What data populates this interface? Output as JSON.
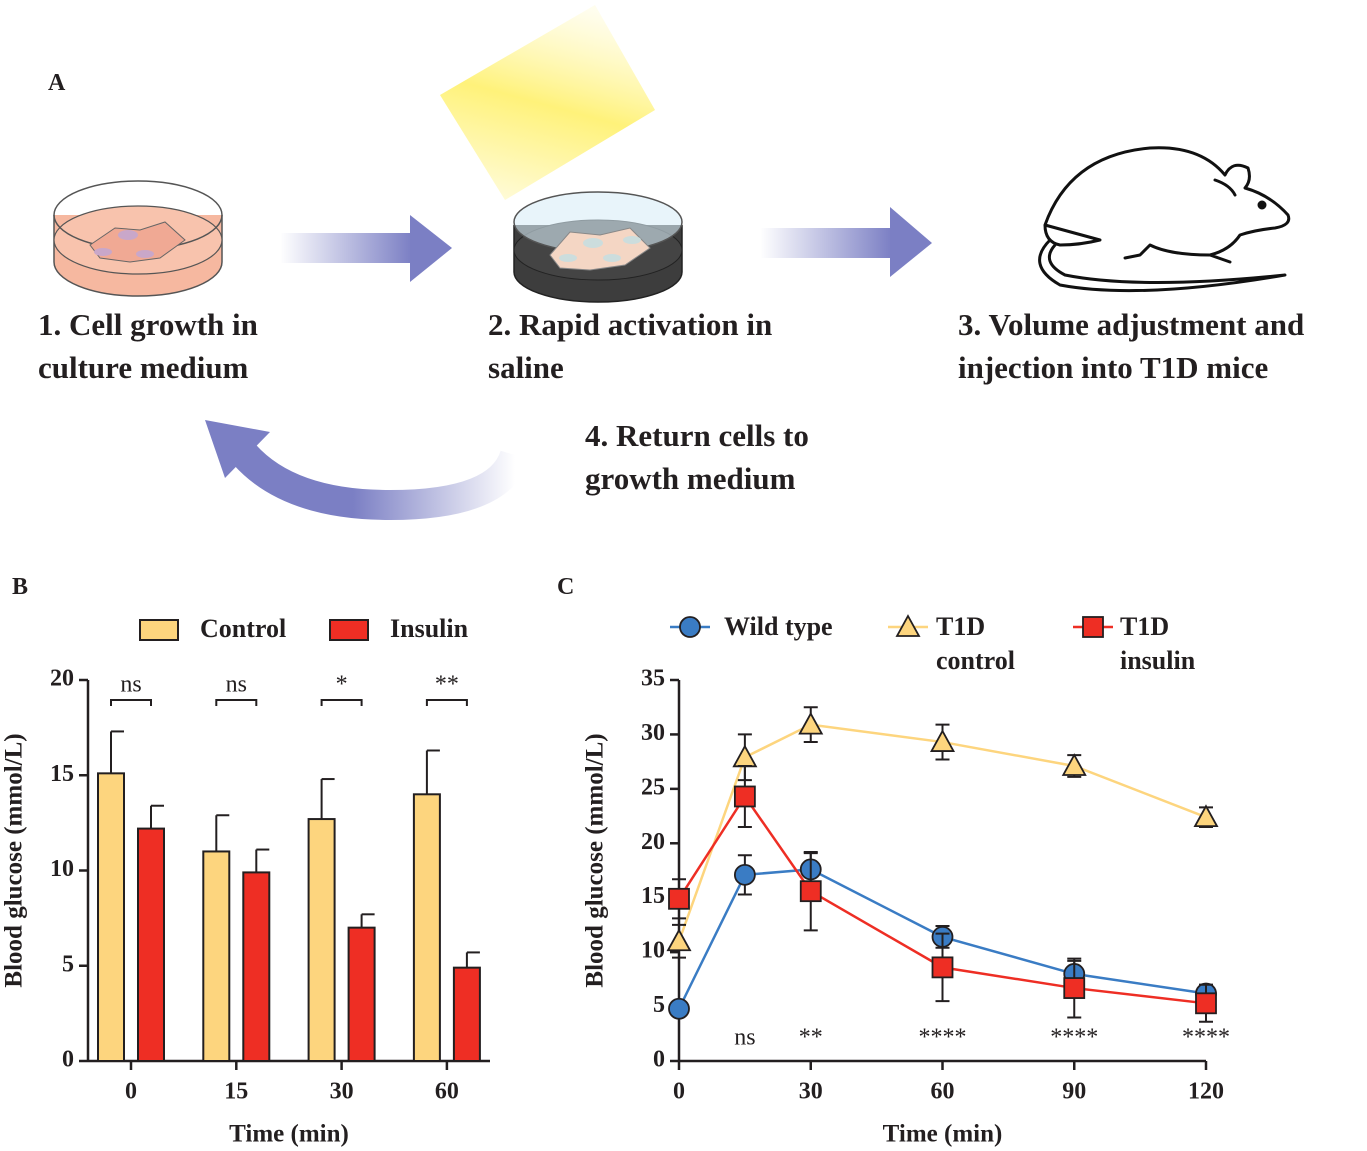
{
  "diagram": {
    "label": "A",
    "steps": [
      "1. Cell growth in culture medium",
      "2. Rapid activation in saline",
      "3. Volume adjustment and injection into T1D mice",
      "4. Return cells to growth medium"
    ]
  },
  "chart_data": [
    {
      "type": "bar",
      "panel": "B",
      "xlabel": "Time (min)",
      "ylabel": "Blood glucose (mmol/L)",
      "categories": [
        "0",
        "15",
        "30",
        "60"
      ],
      "series": [
        {
          "name": "Control",
          "color": "#fdd57e",
          "values": [
            15.1,
            11.0,
            12.7,
            14.0
          ],
          "errors": [
            2.2,
            1.9,
            2.1,
            2.3
          ]
        },
        {
          "name": "Insulin",
          "color": "#ee2e24",
          "values": [
            12.2,
            9.9,
            7.0,
            4.9
          ],
          "errors": [
            1.2,
            1.2,
            0.7,
            0.8
          ]
        }
      ],
      "significance": [
        "ns",
        "ns",
        "*",
        "**"
      ],
      "ylim": [
        0,
        20
      ],
      "yticks": [
        0,
        5,
        10,
        15,
        20
      ]
    },
    {
      "type": "line",
      "panel": "C",
      "xlabel": "Time (min)",
      "ylabel": "Blood glucose (mmol/L)",
      "x": [
        0,
        15,
        30,
        60,
        90,
        120
      ],
      "series": [
        {
          "name": "Wild type",
          "color": "#3a7cc4",
          "marker": "circle",
          "values": [
            4.8,
            17.1,
            17.6,
            11.4,
            8.0,
            6.2
          ],
          "errors": [
            0,
            1.8,
            1.5,
            1.0,
            1.2,
            0.8
          ]
        },
        {
          "name": "T1D control",
          "color": "#fdd57e",
          "marker": "triangle",
          "values": [
            11.0,
            27.9,
            30.9,
            29.3,
            27.1,
            22.4
          ],
          "errors": [
            1.5,
            2.1,
            1.6,
            1.6,
            1.0,
            0.9
          ]
        },
        {
          "name": "T1D insulin",
          "color": "#ee2e24",
          "marker": "square",
          "values": [
            14.9,
            24.3,
            15.6,
            8.6,
            6.7,
            5.3
          ],
          "errors": [
            1.8,
            2.8,
            3.6,
            3.1,
            2.7,
            1.7
          ]
        }
      ],
      "annotations": [
        {
          "x": 15,
          "text": "ns"
        },
        {
          "x": 30,
          "text": "**"
        },
        {
          "x": 60,
          "text": "****"
        },
        {
          "x": 90,
          "text": "****"
        },
        {
          "x": 120,
          "text": "****"
        }
      ],
      "xlim": [
        0,
        120
      ],
      "xticks": [
        0,
        30,
        60,
        90,
        120
      ],
      "ylim": [
        0,
        35
      ],
      "yticks": [
        0,
        5,
        10,
        15,
        20,
        25,
        30,
        35
      ]
    }
  ]
}
